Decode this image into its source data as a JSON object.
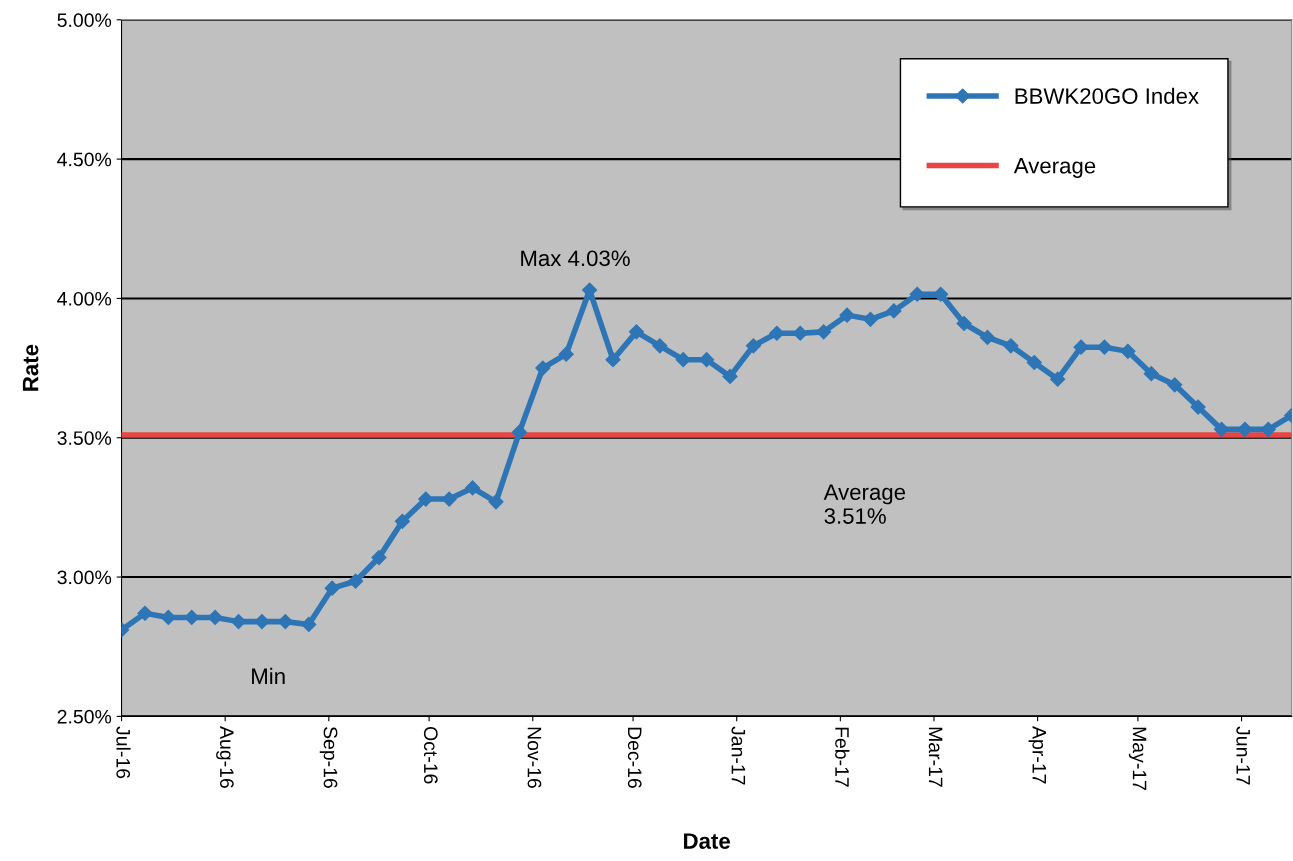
{
  "chart_data": {
    "type": "line",
    "xlabel": "Date",
    "ylabel": "Rate",
    "x": [
      "2016-07-01",
      "2016-07-08",
      "2016-07-15",
      "2016-07-22",
      "2016-07-29",
      "2016-08-05",
      "2016-08-12",
      "2016-08-19",
      "2016-08-26",
      "2016-09-02",
      "2016-09-09",
      "2016-09-16",
      "2016-09-23",
      "2016-09-30",
      "2016-10-07",
      "2016-10-14",
      "2016-10-21",
      "2016-10-28",
      "2016-11-04",
      "2016-11-11",
      "2016-11-18",
      "2016-11-25",
      "2016-12-02",
      "2016-12-09",
      "2016-12-16",
      "2016-12-23",
      "2016-12-30",
      "2017-01-06",
      "2017-01-13",
      "2017-01-20",
      "2017-01-27",
      "2017-02-03",
      "2017-02-10",
      "2017-02-17",
      "2017-02-24",
      "2017-03-03",
      "2017-03-10",
      "2017-03-17",
      "2017-03-24",
      "2017-03-31",
      "2017-04-07",
      "2017-04-14",
      "2017-04-21",
      "2017-04-28",
      "2017-05-05",
      "2017-05-12",
      "2017-05-19",
      "2017-05-26",
      "2017-06-02",
      "2017-06-09",
      "2017-06-16"
    ],
    "series": [
      {
        "name": "BBWK20GO Index",
        "color": "#2e75b6",
        "values": [
          2.81,
          2.87,
          2.855,
          2.855,
          2.855,
          2.84,
          2.84,
          2.84,
          2.83,
          2.96,
          2.985,
          3.07,
          3.2,
          3.28,
          3.28,
          3.32,
          3.27,
          3.52,
          3.75,
          3.8,
          4.03,
          3.78,
          3.88,
          3.83,
          3.78,
          3.78,
          3.72,
          3.83,
          3.875,
          3.875,
          3.88,
          3.94,
          3.925,
          3.955,
          4.015,
          4.015,
          3.91,
          3.86,
          3.83,
          3.77,
          3.71,
          3.825,
          3.825,
          3.81,
          3.73,
          3.69,
          3.61,
          3.53,
          3.53,
          3.53,
          3.58
        ]
      }
    ],
    "ref_lines": [
      {
        "axis": "y",
        "value": 3.51,
        "label": "Average",
        "color": "#e84545"
      }
    ],
    "annotations": [
      "Max 4.03%",
      "Min",
      "Average\n3.51%"
    ],
    "xlim": [
      "2016-07-01",
      "2017-06-16"
    ],
    "xticks": [
      {
        "value": "2016-07-01",
        "label": "Jul-16"
      },
      {
        "value": "2016-08-01",
        "label": "Aug-16"
      },
      {
        "value": "2016-09-01",
        "label": "Sep-16"
      },
      {
        "value": "2016-10-01",
        "label": "Oct-16"
      },
      {
        "value": "2016-11-01",
        "label": "Nov-16"
      },
      {
        "value": "2016-12-01",
        "label": "Dec-16"
      },
      {
        "value": "2017-01-01",
        "label": "Jan-17"
      },
      {
        "value": "2017-02-01",
        "label": "Feb-17"
      },
      {
        "value": "2017-03-01",
        "label": "Mar-17"
      },
      {
        "value": "2017-04-01",
        "label": "Apr-17"
      },
      {
        "value": "2017-05-01",
        "label": "May-17"
      },
      {
        "value": "2017-06-01",
        "label": "Jun-17"
      }
    ],
    "ylim": [
      2.5,
      5.0
    ],
    "yticks": [
      {
        "value": 2.5,
        "label": "2.50%"
      },
      {
        "value": 3.0,
        "label": "3.00%"
      },
      {
        "value": 3.5,
        "label": "3.50%"
      },
      {
        "value": 4.0,
        "label": "4.00%"
      },
      {
        "value": 4.5,
        "label": "4.50%"
      },
      {
        "value": 5.0,
        "label": "5.00%"
      }
    ],
    "grid": "y",
    "legend": "top right",
    "marker": "diamond",
    "line_style": "solid"
  }
}
